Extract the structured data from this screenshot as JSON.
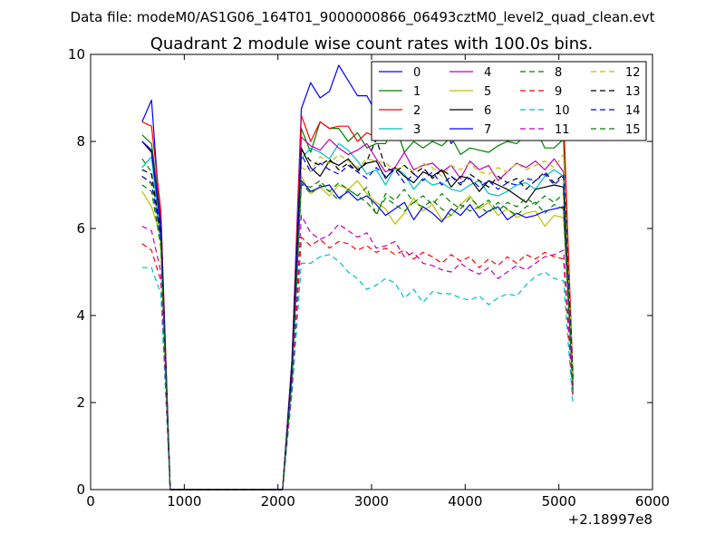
{
  "chart_data": {
    "type": "line",
    "suptitle": "Data file: modeM0/AS1G06_164T01_9000000866_06493cztM0_level2_quad_clean.evt",
    "title": "Quadrant 2 module wise count rates with 100.0s bins.",
    "xlabel": "",
    "ylabel": "",
    "x_offset_label": "+2.18997e8",
    "xlim": [
      0,
      6000
    ],
    "ylim": [
      0,
      10
    ],
    "xticks": [
      0,
      1000,
      2000,
      3000,
      4000,
      5000,
      6000
    ],
    "yticks": [
      0,
      2,
      4,
      6,
      8,
      10
    ],
    "grid": false,
    "legend_position": "top-right",
    "legend_columns": 4,
    "x": [
      550,
      650,
      750,
      850,
      950,
      1050,
      1150,
      1250,
      1350,
      1450,
      1550,
      1650,
      1750,
      1850,
      1950,
      2050,
      2150,
      2250,
      2350,
      2450,
      2550,
      2650,
      2750,
      2850,
      2950,
      3050,
      3150,
      3250,
      3350,
      3450,
      3550,
      3650,
      3750,
      3850,
      3950,
      4050,
      4150,
      4250,
      4350,
      4450,
      4550,
      4650,
      4750,
      4850,
      4950,
      5050,
      5150
    ],
    "series": [
      {
        "name": "0",
        "color": "#0000ff",
        "dash": "solid",
        "values": [
          8.45,
          8.95,
          6.0,
          0,
          0,
          0,
          0,
          0,
          0,
          0,
          0,
          0,
          0,
          0,
          0,
          0,
          3.0,
          8.75,
          9.35,
          9.0,
          9.15,
          9.75,
          9.4,
          9.05,
          9.05,
          8.65,
          8.6,
          8.2,
          8.15,
          8.2,
          8.1,
          8.3,
          8.65,
          7.95,
          8.2,
          8.1,
          8.3,
          8.25,
          8.4,
          8.5,
          8.3,
          8.4,
          8.5,
          8.5,
          8.45,
          8.55,
          2.2
        ]
      },
      {
        "name": "1",
        "color": "#008000",
        "dash": "solid",
        "values": [
          8.15,
          7.95,
          6.3,
          0,
          0,
          0,
          0,
          0,
          0,
          0,
          0,
          0,
          0,
          0,
          0,
          0,
          2.8,
          8.3,
          7.75,
          8.45,
          8.3,
          8.3,
          8.0,
          8.2,
          7.85,
          7.95,
          7.95,
          8.4,
          7.75,
          8.0,
          7.85,
          8.0,
          7.9,
          8.1,
          7.7,
          7.85,
          7.8,
          7.75,
          7.9,
          8.0,
          7.95,
          8.15,
          8.3,
          7.85,
          7.85,
          8.05,
          2.5
        ]
      },
      {
        "name": "2",
        "color": "#ff0000",
        "dash": "solid",
        "values": [
          8.45,
          8.35,
          6.4,
          0,
          0,
          0,
          0,
          0,
          0,
          0,
          0,
          0,
          0,
          0,
          0,
          0,
          2.9,
          8.6,
          8.0,
          8.45,
          8.3,
          8.35,
          8.35,
          8.0,
          8.2,
          8.1,
          8.5,
          8.45,
          8.4,
          8.25,
          8.45,
          8.3,
          8.2,
          8.35,
          8.15,
          8.2,
          8.2,
          8.35,
          8.15,
          8.25,
          8.5,
          8.2,
          8.3,
          8.4,
          8.2,
          8.6,
          2.6
        ]
      },
      {
        "name": "3",
        "color": "#00bfbf",
        "dash": "solid",
        "values": [
          7.4,
          7.65,
          5.7,
          0,
          0,
          0,
          0,
          0,
          0,
          0,
          0,
          0,
          0,
          0,
          0,
          0,
          2.7,
          7.6,
          7.85,
          7.75,
          7.6,
          7.95,
          7.8,
          7.55,
          7.25,
          7.35,
          7.0,
          7.4,
          7.25,
          6.9,
          7.15,
          7.0,
          7.05,
          6.9,
          6.85,
          7.0,
          7.1,
          6.8,
          6.75,
          6.85,
          7.0,
          7.05,
          6.9,
          7.2,
          7.35,
          7.2,
          2.2
        ]
      },
      {
        "name": "4",
        "color": "#bf00bf",
        "dash": "solid",
        "values": [
          8.0,
          7.8,
          6.2,
          0,
          0,
          0,
          0,
          0,
          0,
          0,
          0,
          0,
          0,
          0,
          0,
          0,
          2.9,
          8.1,
          7.9,
          7.8,
          8.05,
          7.85,
          7.7,
          7.8,
          7.95,
          7.6,
          7.3,
          7.4,
          7.75,
          7.35,
          7.45,
          7.5,
          7.3,
          7.45,
          7.15,
          7.55,
          7.35,
          7.45,
          7.1,
          7.3,
          7.5,
          7.4,
          7.55,
          7.35,
          7.6,
          7.3,
          2.5
        ]
      },
      {
        "name": "5",
        "color": "#bfbf00",
        "dash": "solid",
        "values": [
          6.85,
          6.5,
          5.8,
          0,
          0,
          0,
          0,
          0,
          0,
          0,
          0,
          0,
          0,
          0,
          0,
          0,
          2.6,
          7.2,
          6.8,
          6.95,
          6.75,
          7.0,
          6.9,
          7.1,
          6.8,
          6.6,
          6.45,
          6.1,
          6.35,
          6.7,
          6.4,
          6.55,
          6.2,
          6.3,
          6.55,
          6.75,
          6.45,
          6.6,
          6.3,
          6.45,
          6.25,
          6.35,
          6.4,
          6.05,
          6.3,
          6.25,
          2.4
        ]
      },
      {
        "name": "6",
        "color": "#000000",
        "dash": "solid",
        "values": [
          8.0,
          7.75,
          6.1,
          0,
          0,
          0,
          0,
          0,
          0,
          0,
          0,
          0,
          0,
          0,
          0,
          0,
          2.85,
          7.85,
          7.4,
          7.2,
          7.55,
          7.45,
          7.6,
          7.35,
          7.5,
          7.55,
          7.15,
          7.4,
          7.2,
          7.05,
          7.3,
          7.2,
          7.35,
          6.95,
          7.2,
          7.15,
          6.85,
          7.1,
          7.0,
          6.9,
          6.75,
          6.6,
          6.9,
          6.95,
          7.0,
          6.95,
          2.5
        ]
      },
      {
        "name": "7",
        "color": "#0000ff",
        "dash": "solid",
        "values": [
          8.0,
          7.8,
          6.0,
          0,
          0,
          0,
          0,
          0,
          0,
          0,
          0,
          0,
          0,
          0,
          0,
          0,
          2.7,
          7.1,
          6.85,
          6.95,
          7.0,
          6.7,
          6.85,
          6.65,
          6.75,
          6.55,
          6.3,
          6.45,
          6.6,
          6.2,
          6.5,
          6.35,
          6.15,
          6.45,
          6.3,
          6.55,
          6.25,
          6.4,
          6.5,
          6.2,
          6.35,
          6.25,
          6.3,
          6.4,
          6.45,
          6.5,
          2.4
        ]
      },
      {
        "name": "8",
        "color": "#008000",
        "dash": "dashed",
        "values": [
          7.6,
          7.3,
          5.7,
          0,
          0,
          0,
          0,
          0,
          0,
          0,
          0,
          0,
          0,
          0,
          0,
          0,
          2.6,
          7.05,
          6.8,
          7.0,
          6.85,
          6.65,
          6.9,
          6.75,
          6.6,
          6.35,
          6.7,
          6.55,
          6.4,
          6.6,
          6.5,
          6.65,
          6.45,
          6.3,
          6.55,
          6.4,
          6.5,
          6.35,
          6.6,
          6.45,
          6.3,
          6.5,
          6.6,
          6.35,
          6.55,
          6.45,
          2.3
        ]
      },
      {
        "name": "9",
        "color": "#ff0000",
        "dash": "dashed",
        "values": [
          5.65,
          5.5,
          4.8,
          0,
          0,
          0,
          0,
          0,
          0,
          0,
          0,
          0,
          0,
          0,
          0,
          0,
          2.3,
          5.8,
          5.6,
          5.75,
          5.55,
          5.7,
          5.65,
          5.5,
          5.6,
          5.45,
          5.55,
          5.4,
          5.5,
          5.3,
          5.45,
          5.35,
          5.2,
          5.4,
          5.25,
          5.35,
          5.1,
          5.3,
          5.15,
          5.35,
          5.2,
          5.4,
          5.3,
          5.45,
          5.35,
          5.3,
          2.1
        ]
      },
      {
        "name": "10",
        "color": "#00bfbf",
        "dash": "dashed",
        "values": [
          5.1,
          5.1,
          4.5,
          0,
          0,
          0,
          0,
          0,
          0,
          0,
          0,
          0,
          0,
          0,
          0,
          0,
          2.2,
          5.2,
          5.2,
          5.35,
          5.4,
          5.25,
          5.0,
          4.85,
          4.6,
          4.7,
          4.85,
          4.75,
          4.4,
          4.6,
          4.3,
          4.55,
          4.5,
          4.5,
          4.4,
          4.35,
          4.45,
          4.25,
          4.4,
          4.5,
          4.45,
          4.7,
          4.9,
          5.0,
          4.85,
          4.8,
          1.95
        ]
      },
      {
        "name": "11",
        "color": "#bf00bf",
        "dash": "dashed",
        "values": [
          6.05,
          5.95,
          5.0,
          0,
          0,
          0,
          0,
          0,
          0,
          0,
          0,
          0,
          0,
          0,
          0,
          0,
          2.4,
          6.3,
          5.9,
          5.75,
          5.85,
          6.1,
          5.95,
          5.8,
          5.9,
          5.55,
          5.6,
          5.7,
          5.35,
          5.45,
          5.2,
          5.15,
          5.05,
          5.0,
          5.2,
          5.05,
          4.95,
          5.1,
          4.85,
          5.0,
          5.15,
          5.05,
          5.2,
          5.35,
          5.4,
          5.5,
          2.3
        ]
      },
      {
        "name": "12",
        "color": "#bfbf00",
        "dash": "dashed",
        "values": [
          7.2,
          7.0,
          5.5,
          0,
          0,
          0,
          0,
          0,
          0,
          0,
          0,
          0,
          0,
          0,
          0,
          0,
          2.6,
          7.4,
          7.3,
          7.65,
          7.5,
          7.7,
          7.55,
          7.4,
          7.6,
          7.55,
          7.5,
          7.35,
          7.45,
          7.3,
          7.5,
          7.4,
          7.2,
          7.45,
          7.35,
          7.5,
          7.3,
          7.25,
          7.4,
          7.3,
          7.5,
          7.35,
          7.45,
          7.55,
          7.4,
          7.7,
          2.5
        ]
      },
      {
        "name": "13",
        "color": "#000000",
        "dash": "dashed",
        "values": [
          7.35,
          7.25,
          5.9,
          0,
          0,
          0,
          0,
          0,
          0,
          0,
          0,
          0,
          0,
          0,
          0,
          0,
          2.7,
          7.8,
          7.55,
          7.45,
          7.6,
          7.35,
          7.5,
          7.3,
          7.55,
          8.05,
          7.4,
          7.3,
          7.45,
          7.25,
          7.4,
          7.15,
          7.35,
          7.2,
          7.0,
          7.25,
          7.1,
          6.95,
          7.2,
          7.05,
          7.15,
          6.9,
          7.1,
          7.3,
          7.05,
          7.25,
          2.6
        ]
      },
      {
        "name": "14",
        "color": "#0000ff",
        "dash": "dashed",
        "values": [
          7.2,
          7.05,
          5.8,
          0,
          0,
          0,
          0,
          0,
          0,
          0,
          0,
          0,
          0,
          0,
          0,
          0,
          2.65,
          7.7,
          7.3,
          7.5,
          7.35,
          7.25,
          7.45,
          7.3,
          7.15,
          7.4,
          7.2,
          7.35,
          7.05,
          7.25,
          7.1,
          7.3,
          7.0,
          7.2,
          7.05,
          7.15,
          6.95,
          7.1,
          6.9,
          7.05,
          7.0,
          7.15,
          7.1,
          7.25,
          7.0,
          7.2,
          2.5
        ]
      },
      {
        "name": "15",
        "color": "#008000",
        "dash": "dashed",
        "values": [
          7.0,
          6.85,
          5.6,
          0,
          0,
          0,
          0,
          0,
          0,
          0,
          0,
          0,
          0,
          0,
          0,
          0,
          2.55,
          7.0,
          6.95,
          7.1,
          6.85,
          7.05,
          6.9,
          6.75,
          6.95,
          6.3,
          6.8,
          6.65,
          6.9,
          6.6,
          6.75,
          6.55,
          6.8,
          6.6,
          6.45,
          6.7,
          6.5,
          6.65,
          6.4,
          6.6,
          6.5,
          6.7,
          6.55,
          6.75,
          6.6,
          6.8,
          2.4
        ]
      }
    ]
  }
}
